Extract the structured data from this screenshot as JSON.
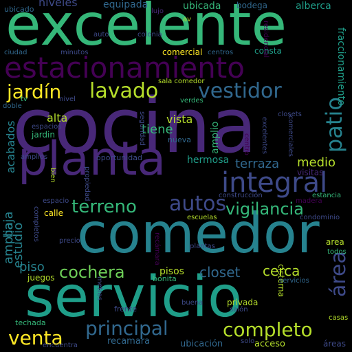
{
  "palette": {
    "background": "#000000",
    "purple_dark": "#440154",
    "purple": "#482878",
    "indigo": "#3e4a89",
    "blue": "#31688e",
    "teal": "#26828e",
    "teal_green": "#1f9e89",
    "green": "#35b779",
    "green_light": "#6ece58",
    "lime": "#b5de2b",
    "yellow": "#fde725"
  },
  "words": [
    {
      "text": "excelente",
      "color": "#35b779"
    },
    {
      "text": "cocina",
      "color": "#482878"
    },
    {
      "text": "comedor",
      "color": "#26828e"
    },
    {
      "text": "servicio",
      "color": "#1f9e89"
    },
    {
      "text": "planta",
      "color": "#482878"
    },
    {
      "text": "estacionamiento",
      "color": "#440154"
    },
    {
      "text": "integral",
      "color": "#3e4a89"
    },
    {
      "text": "lavado",
      "color": "#b5de2b"
    },
    {
      "text": "vestidor",
      "color": "#31688e"
    },
    {
      "text": "jardín",
      "color": "#fde725"
    },
    {
      "text": "patio",
      "color": "#26828e"
    },
    {
      "text": "terreno",
      "color": "#35b779"
    },
    {
      "text": "autos",
      "color": "#3e4a89"
    },
    {
      "text": "vigilancia",
      "color": "#35b779"
    },
    {
      "text": "cochera",
      "color": "#6ece58"
    },
    {
      "text": "venta",
      "color": "#fde725"
    },
    {
      "text": "principal",
      "color": "#31688e"
    },
    {
      "text": "completo",
      "color": "#b5de2b"
    },
    {
      "text": "área",
      "color": "#3e4a89"
    },
    {
      "text": "terraza",
      "color": "#31688e"
    },
    {
      "text": "medio",
      "color": "#b5de2b"
    },
    {
      "text": "tiene",
      "color": "#35b779"
    },
    {
      "text": "cerca",
      "color": "#b5de2b"
    },
    {
      "text": "closet",
      "color": "#31688e"
    },
    {
      "text": "piso",
      "color": "#26828e"
    },
    {
      "text": "estudio",
      "color": "#26828e"
    },
    {
      "text": "amplia",
      "color": "#26828e"
    },
    {
      "text": "baja",
      "color": "#26828e"
    },
    {
      "text": "acabados",
      "color": "#26828e"
    },
    {
      "text": "alta",
      "color": "#b5de2b"
    },
    {
      "text": "vista",
      "color": "#b5de2b"
    },
    {
      "text": "amplio",
      "color": "#35b779"
    },
    {
      "text": "hermosa",
      "color": "#1f9e89"
    },
    {
      "text": "niveles",
      "color": "#3e4a89"
    },
    {
      "text": "equipada",
      "color": "#31688e"
    },
    {
      "text": "ubicada",
      "color": "#35b779"
    },
    {
      "text": "bodega",
      "color": "#31688e"
    },
    {
      "text": "alberca",
      "color": "#1f9e89"
    },
    {
      "text": "ubicado",
      "color": "#31688e"
    },
    {
      "text": "lujo",
      "color": "#482878"
    },
    {
      "text": "av",
      "color": "#b5de2b"
    },
    {
      "text": "auto",
      "color": "#3e4a89"
    },
    {
      "text": "colonia",
      "color": "#3e4a89"
    },
    {
      "text": "ciudad",
      "color": "#31688e"
    },
    {
      "text": "minutos",
      "color": "#3e4a89"
    },
    {
      "text": "comercial",
      "color": "#fde725"
    },
    {
      "text": "centros",
      "color": "#31688e"
    },
    {
      "text": "consta",
      "color": "#1f9e89"
    },
    {
      "text": "residencial",
      "color": "#440154"
    },
    {
      "text": "fraccionamiento",
      "color": "#1f9e89"
    },
    {
      "text": "sala comedor",
      "color": "#b5de2b"
    },
    {
      "text": "tv",
      "color": "#35b779"
    },
    {
      "text": "nivel",
      "color": "#3e4a89"
    },
    {
      "text": "verdes",
      "color": "#35b779"
    },
    {
      "text": "doble",
      "color": "#31688e"
    },
    {
      "text": "espacios",
      "color": "#3e4a89"
    },
    {
      "text": "jardin",
      "color": "#35b779"
    },
    {
      "text": "seguridad",
      "color": "#3e4a89"
    },
    {
      "text": "nueva",
      "color": "#31688e"
    },
    {
      "text": "closets",
      "color": "#3e4a89"
    },
    {
      "text": "comerciales",
      "color": "#3e4a89"
    },
    {
      "text": "excelentes",
      "color": "#3e4a89"
    },
    {
      "text": "centro",
      "color": "#440154"
    },
    {
      "text": "visitas",
      "color": "#482878"
    },
    {
      "text": "amplios",
      "color": "#3e4a89"
    },
    {
      "text": "oportunidad",
      "color": "#3e4a89"
    },
    {
      "text": "propiedad",
      "color": "#3e4a89"
    },
    {
      "text": "bien",
      "color": "#b5de2b"
    },
    {
      "text": "construcción",
      "color": "#3e4a89"
    },
    {
      "text": "espacio",
      "color": "#3e4a89"
    },
    {
      "text": "madera",
      "color": "#440154"
    },
    {
      "text": "estancia",
      "color": "#35b779"
    },
    {
      "text": "calle",
      "color": "#fde725"
    },
    {
      "text": "escuelas",
      "color": "#b5de2b"
    },
    {
      "text": "condominio",
      "color": "#3e4a89"
    },
    {
      "text": "completos",
      "color": "#3e4a89"
    },
    {
      "text": "precio",
      "color": "#3e4a89"
    },
    {
      "text": "recámara",
      "color": "#440154"
    },
    {
      "text": "plantas",
      "color": "#3e4a89"
    },
    {
      "text": "area",
      "color": "#b5de2b"
    },
    {
      "text": "todos",
      "color": "#35b779"
    },
    {
      "text": "pisos",
      "color": "#b5de2b"
    },
    {
      "text": "bonita",
      "color": "#35b779"
    },
    {
      "text": "cisterna",
      "color": "#b5de2b"
    },
    {
      "text": "servicios",
      "color": "#31688e"
    },
    {
      "text": "juegos",
      "color": "#b5de2b"
    },
    {
      "text": "metros",
      "color": "#3e4a89"
    },
    {
      "text": "buena",
      "color": "#3e4a89"
    },
    {
      "text": "privada",
      "color": "#b5de2b"
    },
    {
      "text": "salón",
      "color": "#3e4a89"
    },
    {
      "text": "frente",
      "color": "#3e4a89"
    },
    {
      "text": "techada",
      "color": "#35b779"
    },
    {
      "text": "recamara",
      "color": "#31688e"
    },
    {
      "text": "ubicación",
      "color": "#31688e"
    },
    {
      "text": "acceso",
      "color": "#b5de2b"
    },
    {
      "text": "solo",
      "color": "#3e4a89"
    },
    {
      "text": "casas",
      "color": "#b5de2b"
    },
    {
      "text": "encuentra",
      "color": "#3e4a89"
    },
    {
      "text": "áreas",
      "color": "#3e4a89"
    }
  ]
}
